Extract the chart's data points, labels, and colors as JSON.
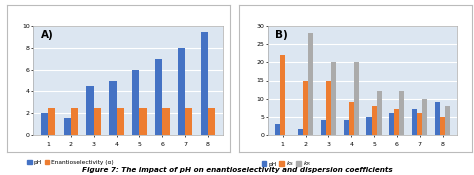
{
  "chart_A": {
    "title": "A)",
    "x_labels": [
      "1",
      "2",
      "3",
      "4",
      "5",
      "6",
      "7",
      "8"
    ],
    "pH": [
      2,
      1.5,
      4.5,
      5,
      6,
      7,
      8,
      9.5
    ],
    "enantio": [
      2.5,
      2.5,
      2.5,
      2.5,
      2.5,
      2.5,
      2.5,
      2.5
    ],
    "ylim": [
      0,
      10
    ],
    "yticks": [
      0,
      2,
      4,
      6,
      8,
      10
    ],
    "color_pH": "#4472C4",
    "color_enantio": "#ED7D31",
    "legend_pH": "pH",
    "legend_enantio": "Enantioselectivity (α)"
  },
  "chart_B": {
    "title": "B)",
    "x_labels": [
      "1",
      "2",
      "3",
      "4",
      "5",
      "6",
      "7",
      "8"
    ],
    "pH": [
      3,
      1.5,
      4,
      4,
      5,
      6,
      7,
      9
    ],
    "kS": [
      22,
      15,
      15,
      9,
      8,
      7,
      6,
      5
    ],
    "kR": [
      0,
      28,
      20,
      20,
      12,
      12,
      10,
      8
    ],
    "ylim": [
      0,
      30
    ],
    "yticks": [
      0,
      5,
      10,
      15,
      20,
      25,
      30
    ],
    "color_pH": "#4472C4",
    "color_kS": "#ED7D31",
    "color_kR": "#ABABAB",
    "legend_pH": "pH",
    "legend_kS": "k_S",
    "legend_kR": "k_R"
  },
  "figure_caption": "Figure 7: The impact of pH on enantioselectivity and dispersion coefficients",
  "bg_color": "#DCE6F1",
  "grid_color": "#FFFFFF",
  "box_bg": "#FFFFFF",
  "box_border": "#BBBBBB"
}
